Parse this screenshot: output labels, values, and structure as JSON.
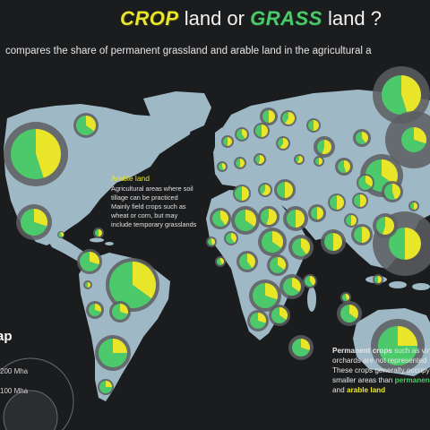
{
  "title": {
    "word1": "CROP",
    "mid": "land or",
    "word2": "GRASS",
    "end": "land ?"
  },
  "subtitle": "compares the share of permanent grassland and arable land in the agricultural a",
  "arable_note": {
    "heading": "Arable land",
    "lines": [
      "Agricultural areas where soil",
      "tillage can be practiced",
      "Mainly field crops such as",
      "wheat or corn, but may",
      "include temporary grasslands"
    ]
  },
  "permanent_note": {
    "l1a": "Permanent crops",
    "l1b": " such as vin",
    "l2": "orchards are not represented",
    "l3": "These crops generally occupy",
    "l4a": "smaller areas than ",
    "l4b": "permanen",
    "l5a": "and ",
    "l5b": "arable land"
  },
  "legend": {
    "title": "ap",
    "big": "200 Mha",
    "small": "100 Mha"
  },
  "colors": {
    "background": "#1b1c1e",
    "land": "#9fb8c6",
    "grassland": "#4cc96a",
    "arable": "#e9e62a",
    "total_ring": "#5c5d60"
  }
}
